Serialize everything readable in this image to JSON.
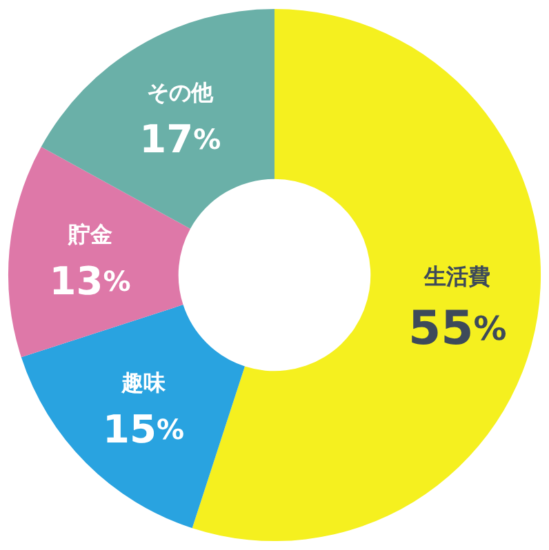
{
  "chart_data": {
    "type": "donut",
    "categories": [
      "生活費",
      "趣味",
      "貯金",
      "その他"
    ],
    "values": [
      55,
      15,
      13,
      17
    ],
    "value_labels": [
      "55%",
      "15%",
      "13%",
      "17%"
    ],
    "colors": [
      "#f5f01f",
      "#29a3e0",
      "#de78a8",
      "#6ab0a8"
    ],
    "legend": false
  }
}
